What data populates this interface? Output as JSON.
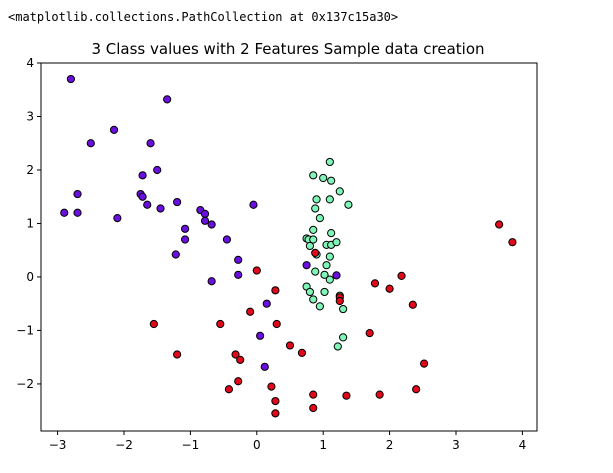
{
  "output_text": "<matplotlib.collections.PathCollection at 0x137c15a30>",
  "colors": {
    "class0": "#6a0fe0",
    "class1": "#7ff5b8",
    "class2": "#e0081a",
    "edge": "#000000"
  },
  "chart_data": {
    "type": "scatter",
    "title": "3 Class values with 2 Features Sample data creation",
    "xlabel": "",
    "ylabel": "",
    "xlim": [
      -3.25,
      4.22
    ],
    "ylim": [
      -2.88,
      4.0
    ],
    "xticks": [
      -3,
      -2,
      -1,
      0,
      1,
      2,
      3,
      4
    ],
    "yticks": [
      -2,
      -1,
      0,
      1,
      2,
      3,
      4
    ],
    "grid": false,
    "series": [
      {
        "class": 0,
        "points": [
          [
            -2.8,
            3.7
          ],
          [
            -2.9,
            1.2
          ],
          [
            -2.7,
            1.55
          ],
          [
            -2.7,
            1.2
          ],
          [
            -2.5,
            2.5
          ],
          [
            -2.15,
            2.75
          ],
          [
            -2.1,
            1.1
          ],
          [
            -1.75,
            1.55
          ],
          [
            -1.72,
            1.9
          ],
          [
            -1.72,
            1.5
          ],
          [
            -1.65,
            1.35
          ],
          [
            -1.6,
            2.5
          ],
          [
            -1.5,
            2.0
          ],
          [
            -1.45,
            1.28
          ],
          [
            -1.35,
            3.32
          ],
          [
            -1.2,
            1.4
          ],
          [
            -1.22,
            0.42
          ],
          [
            -1.08,
            0.9
          ],
          [
            -1.08,
            0.7
          ],
          [
            -0.85,
            1.25
          ],
          [
            -0.78,
            1.18
          ],
          [
            -0.78,
            1.05
          ],
          [
            -0.68,
            0.98
          ],
          [
            -0.68,
            -0.08
          ],
          [
            -0.45,
            0.7
          ],
          [
            -0.28,
            0.32
          ],
          [
            -0.28,
            0.04
          ],
          [
            -0.05,
            1.35
          ],
          [
            0.15,
            -0.5
          ],
          [
            0.12,
            -1.68
          ],
          [
            0.05,
            -1.1
          ],
          [
            0.75,
            0.22
          ],
          [
            1.2,
            0.03
          ]
        ]
      },
      {
        "class": 1,
        "points": [
          [
            0.85,
            1.9
          ],
          [
            1.0,
            1.85
          ],
          [
            1.1,
            2.15
          ],
          [
            1.12,
            1.8
          ],
          [
            1.25,
            1.6
          ],
          [
            1.38,
            1.35
          ],
          [
            0.9,
            1.45
          ],
          [
            1.1,
            1.45
          ],
          [
            0.88,
            1.28
          ],
          [
            0.95,
            1.1
          ],
          [
            0.85,
            0.88
          ],
          [
            1.12,
            0.82
          ],
          [
            0.75,
            0.72
          ],
          [
            0.78,
            0.7
          ],
          [
            0.85,
            0.7
          ],
          [
            1.05,
            0.6
          ],
          [
            1.12,
            0.6
          ],
          [
            1.2,
            0.65
          ],
          [
            0.9,
            0.42
          ],
          [
            0.8,
            0.58
          ],
          [
            1.1,
            0.38
          ],
          [
            1.05,
            0.22
          ],
          [
            0.88,
            0.1
          ],
          [
            1.02,
            0.04
          ],
          [
            1.1,
            -0.05
          ],
          [
            0.75,
            -0.18
          ],
          [
            0.8,
            -0.28
          ],
          [
            1.02,
            -0.28
          ],
          [
            1.25,
            -0.35
          ],
          [
            0.85,
            -0.42
          ],
          [
            0.95,
            -0.55
          ],
          [
            1.3,
            -0.6
          ],
          [
            1.3,
            -1.13
          ],
          [
            1.22,
            -1.3
          ]
        ]
      },
      {
        "class": 2,
        "points": [
          [
            -1.55,
            -0.88
          ],
          [
            -1.2,
            -1.45
          ],
          [
            -0.55,
            -0.88
          ],
          [
            -0.32,
            -1.45
          ],
          [
            -0.25,
            -1.55
          ],
          [
            -0.42,
            -2.1
          ],
          [
            -0.28,
            -1.95
          ],
          [
            -0.1,
            -0.65
          ],
          [
            0.0,
            0.12
          ],
          [
            0.28,
            -0.25
          ],
          [
            0.3,
            -0.88
          ],
          [
            0.5,
            -1.28
          ],
          [
            0.68,
            -1.42
          ],
          [
            0.22,
            -2.05
          ],
          [
            0.28,
            -2.32
          ],
          [
            0.28,
            -2.55
          ],
          [
            0.85,
            -2.2
          ],
          [
            0.85,
            -2.45
          ],
          [
            0.88,
            0.45
          ],
          [
            1.25,
            -0.38
          ],
          [
            1.25,
            -0.45
          ],
          [
            1.35,
            -2.22
          ],
          [
            1.7,
            -1.05
          ],
          [
            1.78,
            -0.12
          ],
          [
            1.85,
            -2.2
          ],
          [
            2.0,
            -0.22
          ],
          [
            2.18,
            0.02
          ],
          [
            2.35,
            -0.52
          ],
          [
            2.4,
            -2.1
          ],
          [
            2.52,
            -1.62
          ],
          [
            3.65,
            0.98
          ],
          [
            3.85,
            0.65
          ]
        ]
      }
    ]
  }
}
